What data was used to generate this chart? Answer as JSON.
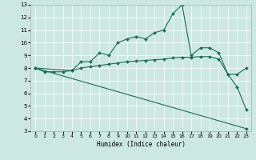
{
  "xlabel": "Humidex (Indice chaleur)",
  "xlim": [
    -0.5,
    23.5
  ],
  "ylim": [
    3,
    13
  ],
  "xticks": [
    0,
    1,
    2,
    3,
    4,
    5,
    6,
    7,
    8,
    9,
    10,
    11,
    12,
    13,
    14,
    15,
    16,
    17,
    18,
    19,
    20,
    21,
    22,
    23
  ],
  "yticks": [
    3,
    4,
    5,
    6,
    7,
    8,
    9,
    10,
    11,
    12,
    13
  ],
  "bg_color": "#cde8e2",
  "line_color": "#1a6b5a",
  "line1_x": [
    0,
    1,
    2,
    3,
    4,
    5,
    6,
    7,
    8,
    9,
    10,
    11,
    12,
    13,
    14,
    15,
    16,
    17,
    18,
    19,
    20,
    21,
    22,
    23
  ],
  "line1_y": [
    8.0,
    7.7,
    7.7,
    7.7,
    7.8,
    8.5,
    8.5,
    9.2,
    9.0,
    10.0,
    10.3,
    10.5,
    10.3,
    10.8,
    11.0,
    12.3,
    13.0,
    9.0,
    9.6,
    9.6,
    9.2,
    7.5,
    6.5,
    4.7
  ],
  "line2_x": [
    0,
    4,
    5,
    6,
    7,
    8,
    9,
    10,
    11,
    12,
    13,
    14,
    15,
    16,
    17,
    18,
    19,
    20,
    21,
    22,
    23
  ],
  "line2_y": [
    8.0,
    7.8,
    8.0,
    8.1,
    8.2,
    8.3,
    8.4,
    8.5,
    8.55,
    8.6,
    8.65,
    8.7,
    8.8,
    8.85,
    8.85,
    8.9,
    8.9,
    8.7,
    7.5,
    7.5,
    8.0
  ],
  "line3_x": [
    0,
    23
  ],
  "line3_y": [
    8.0,
    3.2
  ]
}
